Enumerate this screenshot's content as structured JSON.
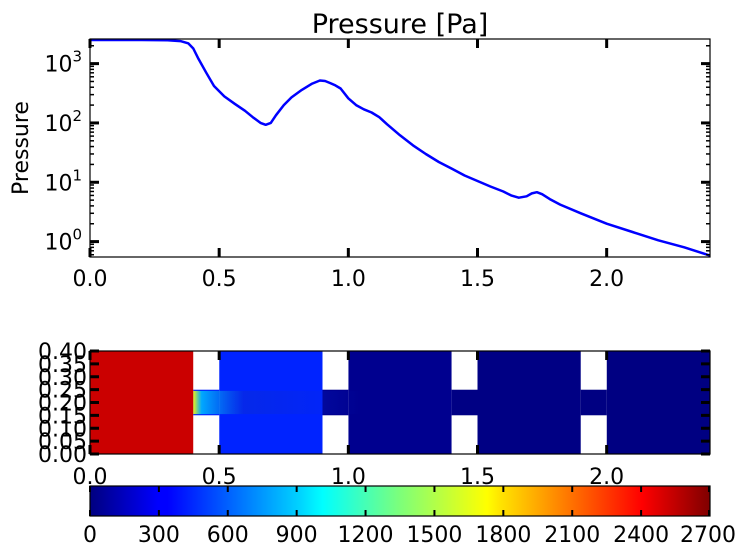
{
  "chart_data": [
    {
      "type": "line",
      "title": "Pressure [Pa]",
      "xlabel": "",
      "ylabel": "Pressure",
      "yscale": "log",
      "xlim": [
        0.0,
        2.4
      ],
      "ylim": [
        0.55,
        2600
      ],
      "xticks": [
        "0.0",
        "0.5",
        "1.0",
        "1.5",
        "2.0"
      ],
      "yticks": [
        {
          "base": "10",
          "exp": "0",
          "value": 1
        },
        {
          "base": "10",
          "exp": "1",
          "value": 10
        },
        {
          "base": "10",
          "exp": "2",
          "value": 100
        },
        {
          "base": "10",
          "exp": "3",
          "value": 1000
        }
      ],
      "grid": false,
      "line_color": "#0000ff",
      "series": [
        {
          "x": [
            0.0,
            0.1,
            0.2,
            0.3,
            0.35,
            0.38,
            0.4,
            0.42,
            0.45,
            0.48,
            0.52,
            0.56,
            0.6,
            0.63,
            0.66,
            0.68,
            0.7,
            0.72,
            0.75,
            0.78,
            0.82,
            0.86,
            0.89,
            0.91,
            0.93,
            0.95,
            0.97,
            1.0,
            1.03,
            1.06,
            1.09,
            1.12,
            1.15,
            1.2,
            1.25,
            1.3,
            1.35,
            1.4,
            1.45,
            1.5,
            1.55,
            1.6,
            1.63,
            1.66,
            1.69,
            1.71,
            1.73,
            1.75,
            1.78,
            1.82,
            1.9,
            2.0,
            2.1,
            2.2,
            2.3,
            2.4
          ],
          "y": [
            2500,
            2500,
            2500,
            2480,
            2400,
            2200,
            1800,
            1200,
            700,
            420,
            280,
            210,
            160,
            125,
            100,
            93,
            100,
            135,
            200,
            270,
            360,
            460,
            520,
            510,
            470,
            430,
            380,
            260,
            200,
            170,
            150,
            125,
            95,
            62,
            42,
            30,
            22,
            17,
            13,
            10.5,
            8.5,
            7,
            6,
            5.5,
            5.8,
            6.5,
            6.8,
            6.3,
            5.2,
            4.2,
            3.0,
            2.0,
            1.45,
            1.05,
            0.8,
            0.58
          ]
        }
      ]
    },
    {
      "type": "heatmap",
      "title": "",
      "xlim": [
        0.0,
        2.4
      ],
      "ylim": [
        0.0,
        0.4
      ],
      "xticks": [
        "0.0",
        "0.5",
        "1.0",
        "1.5",
        "2.0"
      ],
      "yticks": [
        "0.00",
        "0.05",
        "0.10",
        "0.15",
        "0.20",
        "0.25",
        "0.30",
        "0.35",
        "0.40"
      ],
      "colormap": "jet",
      "color_range": [
        0,
        2700
      ],
      "solid_blocks": [
        {
          "x": [
            0.4,
            0.5
          ],
          "y": [
            0.0,
            0.15
          ]
        },
        {
          "x": [
            0.4,
            0.5
          ],
          "y": [
            0.25,
            0.4
          ]
        },
        {
          "x": [
            0.9,
            1.0
          ],
          "y": [
            0.0,
            0.15
          ]
        },
        {
          "x": [
            0.9,
            1.0
          ],
          "y": [
            0.25,
            0.4
          ]
        },
        {
          "x": [
            1.4,
            1.5
          ],
          "y": [
            0.0,
            0.15
          ]
        },
        {
          "x": [
            1.4,
            1.5
          ],
          "y": [
            0.25,
            0.4
          ]
        },
        {
          "x": [
            1.9,
            2.0
          ],
          "y": [
            0.0,
            0.15
          ]
        },
        {
          "x": [
            1.9,
            2.0
          ],
          "y": [
            0.25,
            0.4
          ]
        }
      ],
      "regions": [
        {
          "x": [
            0.0,
            0.4
          ],
          "value": 2500
        },
        {
          "x": [
            0.5,
            0.9
          ],
          "value": 430
        },
        {
          "x": [
            1.0,
            1.4
          ],
          "value": 40
        },
        {
          "x": [
            1.5,
            1.9
          ],
          "value": 12
        },
        {
          "x": [
            2.0,
            2.4
          ],
          "value": 6
        }
      ]
    },
    {
      "type": "colorbar",
      "ticks": [
        "0",
        "300",
        "600",
        "900",
        "1200",
        "1500",
        "1800",
        "2100",
        "2400",
        "2700"
      ],
      "range": [
        0,
        2700
      ]
    }
  ]
}
